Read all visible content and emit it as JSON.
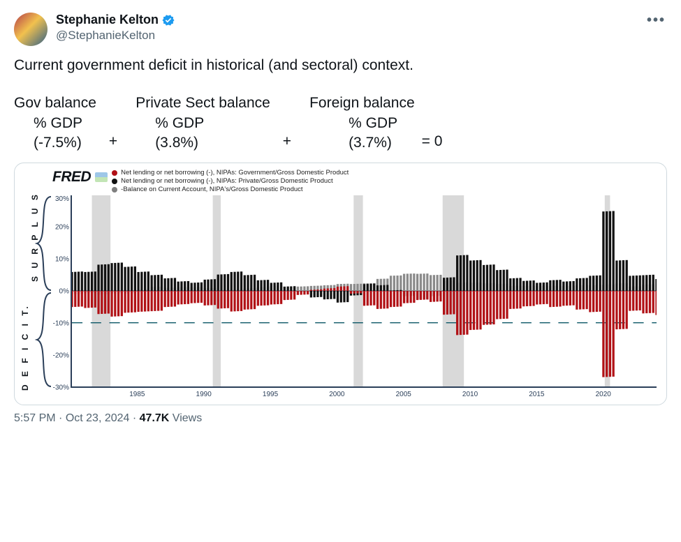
{
  "author": {
    "display_name": "Stephanie Kelton",
    "handle": "@StephanieKelton",
    "verified_color": "#1d9bf0"
  },
  "body_line": "Current government deficit in historical (and sectoral) context.",
  "equation": {
    "col1": {
      "label": "Gov balance",
      "gdp": "% GDP",
      "val": "(-7.5%)"
    },
    "plus": "+",
    "col2": {
      "label": "Private Sect balance",
      "gdp": "% GDP",
      "val": "(3.8%)"
    },
    "col3": {
      "label": "Foreign balance",
      "gdp": "% GDP",
      "val": "(3.7%)"
    },
    "eqzero": "=  0"
  },
  "chart": {
    "brand": "FRED",
    "legend": [
      {
        "color": "#b11116",
        "text": "Net lending or net borrowing (-), NIPAs: Government/Gross Domestic Product"
      },
      {
        "color": "#111111",
        "text": "Net lending or net borrowing (-), NIPAs: Private/Gross Domestic Product"
      },
      {
        "color": "#7f7f7f",
        "text": "-Balance on Current Account, NIPA's/Gross Domestic Product"
      }
    ],
    "y": {
      "min": -30,
      "max": 30,
      "ticks": [
        30,
        20,
        10,
        0,
        -10,
        -20,
        -30
      ]
    },
    "x": {
      "start": 1980,
      "end": 2024,
      "ticks": [
        1985,
        1990,
        1995,
        2000,
        2005,
        2010,
        2015,
        2020
      ]
    },
    "recessions": [
      [
        1981.5,
        1982.9
      ],
      [
        1990.6,
        1991.2
      ],
      [
        2001.2,
        2001.9
      ],
      [
        2007.9,
        2009.5
      ],
      [
        2020.1,
        2020.5
      ]
    ],
    "dash_line_y": -10,
    "dash_color": "#0b5666",
    "colors": {
      "gov": "#b11116",
      "priv": "#111111",
      "ca": "#8a8a8a",
      "recession": "#d9d9d9",
      "axis": "#2b3f59"
    },
    "axis_labels": {
      "surplus": "S U R P L U S",
      "deficit": "D E F I C I T."
    },
    "series": {
      "years_start": 1980,
      "gov": [
        -5.0,
        -5.3,
        -7.2,
        -8.0,
        -6.8,
        -6.5,
        -6.3,
        -5.0,
        -4.2,
        -3.8,
        -4.5,
        -5.5,
        -6.4,
        -5.8,
        -4.6,
        -4.2,
        -2.8,
        -1.2,
        0.4,
        0.8,
        1.4,
        -0.8,
        -4.6,
        -5.6,
        -5.0,
        -3.8,
        -2.8,
        -3.4,
        -7.4,
        -13.8,
        -12.2,
        -10.6,
        -8.8,
        -5.6,
        -4.8,
        -4.2,
        -5.0,
        -4.6,
        -5.8,
        -6.6,
        -27.0,
        -12.0,
        -6.2,
        -7.0,
        -7.5
      ],
      "priv": [
        6.0,
        6.0,
        8.3,
        8.8,
        7.6,
        6.0,
        5.0,
        4.0,
        3.0,
        2.6,
        3.6,
        5.2,
        6.0,
        5.0,
        3.4,
        2.6,
        1.4,
        -0.2,
        -2.0,
        -2.6,
        -3.6,
        -1.4,
        2.2,
        1.8,
        0.2,
        -1.6,
        -2.6,
        -1.6,
        4.2,
        11.2,
        9.6,
        8.2,
        6.6,
        4.0,
        3.2,
        2.6,
        3.4,
        3.0,
        4.0,
        4.8,
        25.0,
        9.6,
        4.8,
        5.0,
        3.8
      ],
      "ca": [
        -1.0,
        -0.7,
        -1.1,
        -0.8,
        -0.8,
        0.5,
        1.3,
        1.0,
        1.2,
        1.2,
        0.9,
        0.3,
        0.4,
        0.8,
        1.2,
        1.6,
        1.4,
        1.4,
        1.6,
        1.8,
        2.2,
        2.2,
        2.4,
        3.8,
        4.8,
        5.4,
        5.4,
        5.0,
        3.2,
        2.6,
        2.6,
        2.4,
        2.2,
        1.6,
        1.6,
        1.6,
        1.6,
        1.6,
        1.8,
        1.8,
        2.0,
        2.4,
        1.4,
        2.0,
        3.7
      ]
    }
  },
  "meta": {
    "time": "5:57 PM",
    "sep": " · ",
    "date": "Oct 23, 2024",
    "views_num": "47.7K",
    "views_word": " Views"
  }
}
